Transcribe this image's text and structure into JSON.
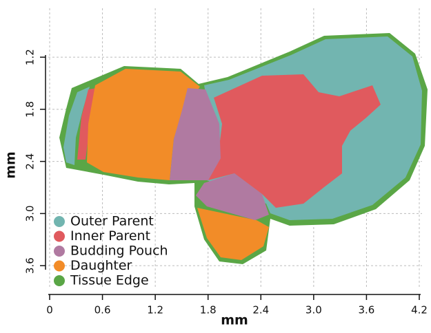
{
  "chart_data": {
    "type": "segmentation",
    "xlabel": "mm",
    "ylabel": "mm",
    "xlim": [
      0,
      4.2
    ],
    "xticks": [
      0,
      0.6,
      1.2,
      1.8,
      2.4,
      {
        "value": 3,
        "label": "3.0"
      },
      3.6,
      4.2
    ],
    "ylim": [
      0.7,
      3.9
    ],
    "yticks": [
      1.2,
      1.8,
      2.4,
      {
        "value": 3,
        "label": "3.0"
      },
      3.6
    ],
    "y_inverted": true,
    "grid": true,
    "classes": [
      {
        "name": "Outer Parent",
        "color": "#72b5b0"
      },
      {
        "name": "Inner Parent",
        "color": "#e05a5e"
      },
      {
        "name": "Budding Pouch",
        "color": "#b07aa1"
      },
      {
        "name": "Daughter",
        "color": "#f28c28"
      },
      {
        "name": "Tissue Edge",
        "color": "#5aa646"
      }
    ]
  }
}
